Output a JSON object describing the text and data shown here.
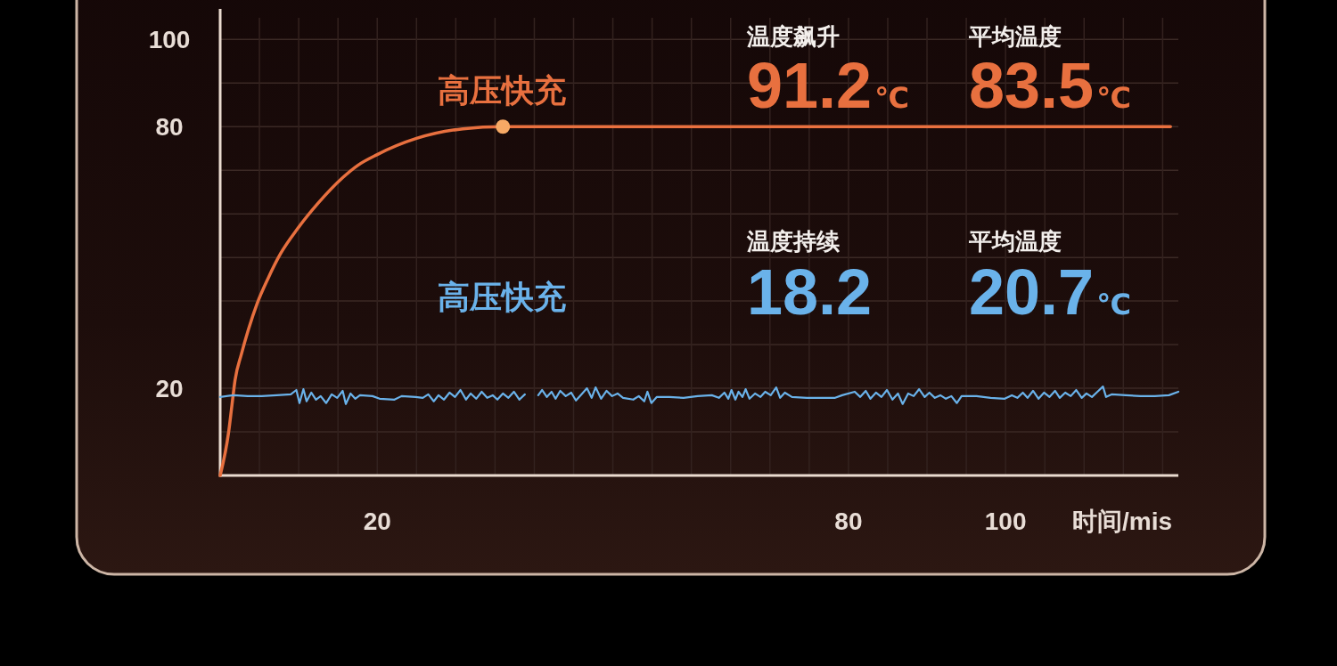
{
  "chart_data": {
    "type": "line",
    "xlabel": "时间/mis",
    "xlim": [
      0,
      122
    ],
    "xticks": [
      {
        "value": 5,
        "label": null
      },
      {
        "value": 10,
        "label": null
      },
      {
        "value": 15,
        "label": null
      },
      20,
      {
        "value": 25,
        "label": null
      },
      {
        "value": 30,
        "label": null
      },
      {
        "value": 35,
        "label": null
      },
      {
        "value": 40,
        "label": null
      },
      {
        "value": 45,
        "label": null
      },
      {
        "value": 50,
        "label": null
      },
      {
        "value": 55,
        "label": null
      },
      {
        "value": 60,
        "label": null
      },
      {
        "value": 65,
        "label": null
      },
      {
        "value": 70,
        "label": null
      },
      {
        "value": 75,
        "label": null
      },
      80,
      {
        "value": 85,
        "label": null
      },
      {
        "value": 90,
        "label": null
      },
      {
        "value": 95,
        "label": null
      },
      100,
      {
        "value": 105,
        "label": null
      },
      {
        "value": 110,
        "label": null
      },
      {
        "value": 115,
        "label": null
      },
      {
        "value": 120,
        "label": null
      }
    ],
    "ylim": [
      0,
      107
    ],
    "yticks": [
      {
        "value": 10,
        "label": null
      },
      20,
      {
        "value": 30,
        "label": null
      },
      {
        "value": 40,
        "label": null
      },
      {
        "value": 50,
        "label": null
      },
      {
        "value": 60,
        "label": null
      },
      {
        "value": 70,
        "label": null
      },
      80,
      {
        "value": 90,
        "label": null
      },
      100
    ],
    "grid": true,
    "series": [
      {
        "name": "高压快充",
        "color": "#e8703f",
        "x": [
          0,
          1.1,
          1.5,
          1.9,
          2.7,
          3.6,
          4.7,
          6.1,
          7.7,
          9.9,
          12.5,
          15.6,
          17.5,
          20.0,
          25.0,
          30.9,
          36,
          121
        ],
        "values": [
          0,
          10.2,
          16.1,
          21.9,
          27.8,
          33.5,
          39.4,
          45.2,
          50.9,
          56.7,
          62.5,
          68.3,
          71.1,
          73.6,
          77.3,
          79.5,
          80,
          80
        ]
      },
      {
        "name": "高压快充",
        "color": "#6ab2ea",
        "x": [
          0,
          1.7,
          3.5,
          5.3,
          7.2,
          9.0,
          9.7,
          10.1,
          10.6,
          11.0,
          11.6,
          12.2,
          12.8,
          13.5,
          14.2,
          14.9,
          15.6,
          16.0,
          16.6,
          17.2,
          17.8,
          19.4,
          20.3,
          22.2,
          23.1,
          24.9,
          25.8,
          26.5,
          27.2,
          27.8,
          28.5,
          29.2,
          29.9,
          30.6,
          31.3,
          31.9,
          32.6,
          33.3,
          34.0,
          34.7,
          35.3,
          36.0,
          36.7,
          37.4,
          38.1,
          38.8,
          null,
          40.5,
          41.0,
          41.6,
          42.2,
          42.7,
          43.3,
          44.0,
          44.7,
          45.3,
          46.0,
          46.7,
          47.3,
          47.8,
          48.5,
          49.2,
          49.9,
          50.6,
          51.3,
          52.6,
          53.3,
          54.0,
          54.4,
          54.9,
          55.6,
          57.2,
          59.0,
          60.8,
          62.6,
          63.5,
          64.2,
          64.7,
          65.1,
          65.6,
          66.0,
          66.5,
          66.9,
          67.4,
          68.1,
          68.8,
          69.4,
          70.1,
          70.8,
          71.3,
          71.9,
          72.8,
          74.7,
          76.5,
          78.3,
          79.2,
          80.8,
          81.5,
          82.2,
          82.8,
          83.5,
          84.2,
          84.9,
          85.6,
          86.3,
          86.9,
          87.6,
          88.3,
          89.0,
          89.7,
          90.3,
          91.0,
          91.7,
          92.4,
          93.1,
          93.8,
          94.4,
          96.3,
          98.1,
          99.9,
          100.8,
          101.5,
          102.2,
          102.8,
          103.5,
          104.2,
          104.9,
          105.6,
          106.3,
          106.9,
          107.6,
          108.3,
          109.0,
          109.7,
          110.3,
          111.0,
          111.7,
          112.4,
          112.8,
          113.5,
          115.3,
          117.2,
          119.0,
          120.8,
          122
        ],
        "values": [
          18.0,
          18.4,
          18.2,
          18.2,
          18.4,
          18.6,
          19.6,
          16.6,
          19.8,
          17.0,
          19.0,
          17.4,
          18.2,
          16.6,
          18.6,
          17.8,
          19.4,
          16.4,
          18.8,
          17.6,
          18.4,
          18.2,
          17.6,
          17.4,
          18.2,
          18.0,
          17.8,
          18.6,
          17.0,
          18.4,
          17.4,
          19.0,
          18.0,
          19.6,
          17.4,
          18.8,
          17.6,
          19.2,
          17.8,
          18.4,
          17.4,
          18.8,
          17.8,
          19.2,
          17.4,
          18.6,
          null,
          18.4,
          19.6,
          18.0,
          19.2,
          17.6,
          19.4,
          18.2,
          19.0,
          17.2,
          18.6,
          20.0,
          17.8,
          20.2,
          17.6,
          19.4,
          18.2,
          18.8,
          17.8,
          17.4,
          18.2,
          17.0,
          19.2,
          16.6,
          18.0,
          18.0,
          17.8,
          18.2,
          18.4,
          17.8,
          19.0,
          17.6,
          19.6,
          17.4,
          19.2,
          18.0,
          19.8,
          17.6,
          18.8,
          18.0,
          19.2,
          18.4,
          20.2,
          17.8,
          19.0,
          18.0,
          17.8,
          17.8,
          17.8,
          18.4,
          19.2,
          18.0,
          19.4,
          17.6,
          19.0,
          18.0,
          19.6,
          17.4,
          18.8,
          16.4,
          18.8,
          18.2,
          19.8,
          18.0,
          19.0,
          17.8,
          18.4,
          17.6,
          18.2,
          16.6,
          18.2,
          18.2,
          17.8,
          17.6,
          18.4,
          17.8,
          19.0,
          17.8,
          19.4,
          17.6,
          19.0,
          18.0,
          19.4,
          17.8,
          19.0,
          18.2,
          19.6,
          17.8,
          18.8,
          18.0,
          19.2,
          20.4,
          18.0,
          18.6,
          18.4,
          18.2,
          18.2,
          18.4,
          19.2
        ]
      },
      {
        "type": "scatter",
        "marker": "circle",
        "color": "#f6a965",
        "x": [
          36
        ],
        "values": [
          80
        ]
      }
    ],
    "annotations": [
      "温度飙升",
      "91.2℃",
      "平均温度",
      "83.5℃",
      "温度持续",
      "18.2",
      "平均温度",
      "20.7℃"
    ]
  }
}
